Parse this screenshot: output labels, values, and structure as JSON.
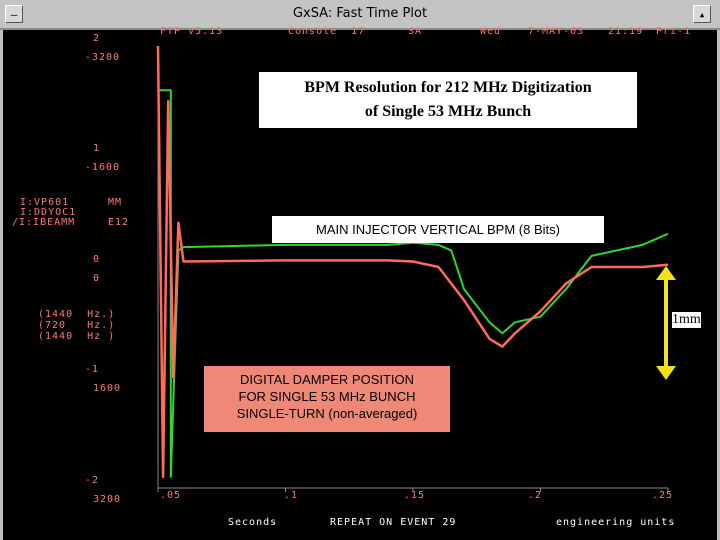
{
  "window": {
    "title": "GxSA: Fast Time Plot",
    "minimize_glyph": "—",
    "maximize_glyph": "▴"
  },
  "header": {
    "program": "FTP V5.13",
    "console": "Console  17",
    "sa": "SA",
    "day": "Wed",
    "date": "7-MAY-03",
    "time": "21:19",
    "priority": "Pri-1"
  },
  "y_axes": {
    "scale_top": "2",
    "scale_top_val": "-3200",
    "scale_upper": "1",
    "scale_upper_val": "-1600",
    "scale_zero": "0",
    "scale_zero_val": "0",
    "scale_lower": "-1",
    "scale_lower_val": "1600",
    "scale_bottom": "-2",
    "scale_bottom_val": "3200"
  },
  "devices": [
    {
      "name": "I:VP601",
      "unit": "MM"
    },
    {
      "name": "I:DDYOC1",
      "unit": ""
    },
    {
      "name": "/I:IBEAMM",
      "unit": "E12"
    }
  ],
  "rates": [
    "(1440  Hz.)",
    "(720   Hz.)",
    "(1440  Hz )"
  ],
  "x_axis": {
    "ticks": [
      ".05",
      ".1",
      ".15",
      ".2",
      ".25"
    ],
    "label": "Seconds",
    "trigger": "REPEAT ON EVENT 29",
    "units": "engineering units"
  },
  "annotations": {
    "title_line1": "BPM Resolution for 212 MHz Digitization",
    "title_line2": "of Single 53 MHz Bunch",
    "green_label": "MAIN INJECTOR VERTICAL BPM (8 Bits)",
    "red_line1": "DIGITAL DAMPER POSITION",
    "red_line2": "FOR SINGLE 53 MHz BUNCH",
    "red_line3": "SINGLE-TURN (non-averaged)",
    "scale_bar": "1mm"
  },
  "chart_data": {
    "type": "line",
    "xlabel": "Seconds",
    "xlim": [
      0.05,
      0.25
    ],
    "x_ticks": [
      0.05,
      0.1,
      0.15,
      0.2,
      0.25
    ],
    "ylim": [
      -2,
      2
    ],
    "grid": false,
    "series": [
      {
        "color": "#2fd62f",
        "x": [
          0.05,
          0.055,
          0.055,
          0.058,
          0.06,
          0.1,
          0.14,
          0.15,
          0.16,
          0.165,
          0.17,
          0.18,
          0.185,
          0.19,
          0.2,
          0.21,
          0.22,
          0.23,
          0.24,
          0.25
        ],
        "values": [
          1.6,
          1.6,
          -1.9,
          0.15,
          0.18,
          0.2,
          0.2,
          0.22,
          0.2,
          0.15,
          -0.2,
          -0.5,
          -0.6,
          -0.5,
          -0.45,
          -0.2,
          0.1,
          0.15,
          0.2,
          0.3
        ]
      },
      {
        "color": "#ff6a5a",
        "x": [
          0.05,
          0.052,
          0.054,
          0.056,
          0.058,
          0.06,
          0.1,
          0.14,
          0.15,
          0.16,
          0.17,
          0.18,
          0.185,
          0.19,
          0.2,
          0.21,
          0.22,
          0.23,
          0.24,
          0.25
        ],
        "values": [
          2.0,
          -1.9,
          1.5,
          -1.0,
          0.4,
          0.05,
          0.06,
          0.06,
          0.05,
          0.0,
          -0.3,
          -0.65,
          -0.72,
          -0.6,
          -0.4,
          -0.15,
          0.0,
          0.0,
          0.0,
          0.02
        ]
      }
    ]
  }
}
